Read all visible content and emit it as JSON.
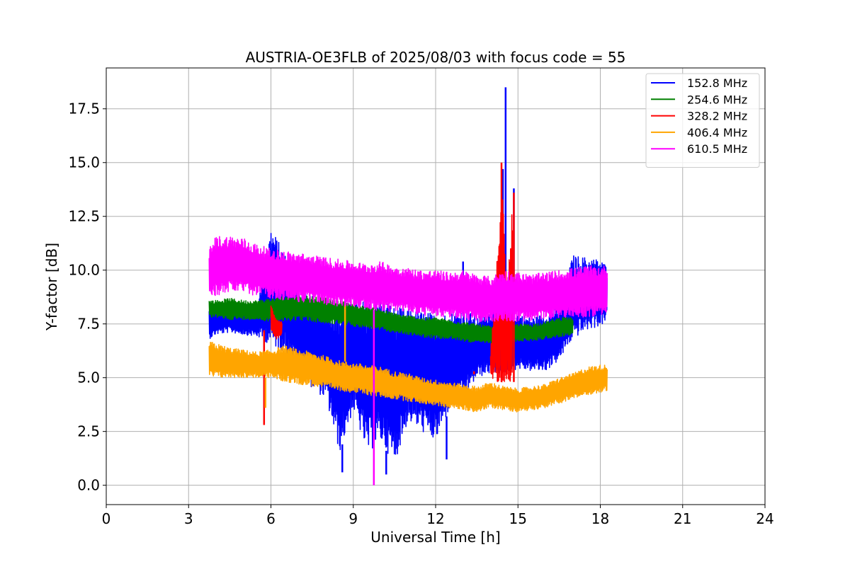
{
  "chart_data": {
    "type": "line",
    "title": "AUSTRIA-OE3FLB of 2025/08/03 with focus code = 55",
    "xlabel": "Universal Time [h]",
    "ylabel": "Y-factor [dB]",
    "xlim": [
      0,
      24
    ],
    "ylim": [
      -0.9,
      19.4
    ],
    "xticks": [
      0,
      3,
      6,
      9,
      12,
      15,
      18,
      21,
      24
    ],
    "xtick_labels": [
      "0",
      "3",
      "6",
      "9",
      "12",
      "15",
      "18",
      "21",
      "24"
    ],
    "yticks": [
      0.0,
      2.5,
      5.0,
      7.5,
      10.0,
      12.5,
      15.0,
      17.5
    ],
    "ytick_labels": [
      "0.0",
      "2.5",
      "5.0",
      "7.5",
      "10.0",
      "12.5",
      "15.0",
      "17.5"
    ],
    "grid": true,
    "legend_position": "top-right",
    "series": [
      {
        "name": "152.8 MHz",
        "color": "#0000ff",
        "x": [
          3.75,
          4.0,
          4.5,
          5.0,
          5.5,
          6.0,
          6.5,
          7.0,
          7.5,
          8.0,
          8.5,
          9.0,
          9.5,
          10.0,
          10.5,
          11.0,
          11.5,
          12.0,
          12.5,
          13.0,
          13.5,
          14.0,
          14.5,
          15.0,
          15.5,
          16.0,
          16.5,
          17.0,
          17.5,
          18.0,
          18.25
        ],
        "low": [
          6.8,
          7.0,
          7.1,
          7.0,
          6.9,
          6.5,
          6.2,
          5.5,
          4.5,
          4.0,
          1.5,
          3.5,
          1.5,
          2.0,
          1.0,
          3.0,
          2.5,
          2.0,
          3.5,
          4.0,
          5.0,
          5.2,
          5.2,
          5.4,
          5.3,
          5.3,
          5.8,
          6.8,
          7.2,
          7.4,
          7.6
        ],
        "high": [
          8.2,
          8.5,
          8.5,
          8.4,
          8.4,
          12.0,
          10.8,
          9.0,
          8.8,
          8.6,
          8.4,
          8.5,
          8.6,
          8.9,
          8.3,
          8.2,
          8.1,
          8.0,
          8.0,
          8.3,
          7.8,
          8.2,
          8.5,
          8.0,
          7.8,
          8.0,
          8.3,
          10.7,
          10.6,
          10.5,
          10.2
        ],
        "spikes": [
          {
            "x": 14.55,
            "y": 18.5
          },
          {
            "x": 14.85,
            "y": 13.8
          },
          {
            "x": 14.45,
            "y": 14.7
          },
          {
            "x": 8.6,
            "y": 0.6
          },
          {
            "x": 10.2,
            "y": 0.5
          },
          {
            "x": 12.4,
            "y": 1.2
          },
          {
            "x": 13.0,
            "y": 10.4
          }
        ]
      },
      {
        "name": "254.6 MHz",
        "color": "#008000",
        "x": [
          3.75,
          4.0,
          4.5,
          5.0,
          5.5,
          6.0,
          6.5,
          7.0,
          7.5,
          8.0,
          8.5,
          9.0,
          9.5,
          10.0,
          10.5,
          11.0,
          11.5,
          12.0,
          12.5,
          13.0,
          13.5,
          14.0,
          14.5,
          15.0,
          15.5,
          16.0,
          16.5,
          17.0
        ],
        "low": [
          7.8,
          7.8,
          7.7,
          7.7,
          7.7,
          7.6,
          7.6,
          7.7,
          7.6,
          7.5,
          7.5,
          7.4,
          7.3,
          7.2,
          7.1,
          7.0,
          6.9,
          6.8,
          6.8,
          6.7,
          6.6,
          6.6,
          6.6,
          6.7,
          6.7,
          6.8,
          6.9,
          7.0
        ],
        "high": [
          8.6,
          8.6,
          8.7,
          8.6,
          8.6,
          8.7,
          8.8,
          8.9,
          8.8,
          8.7,
          8.6,
          8.4,
          8.3,
          8.2,
          8.0,
          7.9,
          7.8,
          7.8,
          7.7,
          7.6,
          7.5,
          7.4,
          7.4,
          7.5,
          7.5,
          7.6,
          7.8,
          7.8
        ]
      },
      {
        "name": "328.2 MHz",
        "color": "#ff0000",
        "x": [
          6.0,
          6.2,
          6.4,
          14.0,
          14.2,
          14.4,
          14.6,
          14.8
        ],
        "low": [
          7.2,
          6.8,
          7.0,
          5.0,
          4.8,
          4.8,
          4.8,
          4.8
        ],
        "high": [
          8.4,
          7.8,
          7.6,
          6.2,
          9.5,
          15.0,
          9.0,
          13.6
        ],
        "spikes": [
          {
            "x": 5.75,
            "y": 2.8
          },
          {
            "x": 14.4,
            "y": 15.0
          },
          {
            "x": 14.85,
            "y": 13.6
          },
          {
            "x": 13.4,
            "y": 5.3
          }
        ]
      },
      {
        "name": "406.4 MHz",
        "color": "#ffa500",
        "x": [
          3.75,
          4.0,
          4.5,
          5.0,
          5.5,
          6.0,
          6.5,
          7.0,
          7.5,
          8.0,
          8.5,
          9.0,
          9.5,
          10.0,
          10.5,
          11.0,
          11.5,
          12.0,
          12.5,
          13.0,
          13.5,
          14.0,
          14.5,
          15.0,
          15.5,
          16.0,
          16.5,
          17.0,
          17.5,
          18.0,
          18.25
        ],
        "low": [
          5.0,
          5.0,
          5.0,
          5.0,
          5.0,
          5.0,
          4.8,
          4.7,
          4.6,
          4.5,
          4.4,
          4.3,
          4.2,
          4.1,
          4.0,
          3.9,
          3.8,
          3.7,
          3.6,
          3.5,
          3.4,
          3.6,
          3.5,
          3.4,
          3.5,
          3.6,
          3.8,
          4.0,
          4.2,
          4.3,
          4.4
        ],
        "high": [
          6.7,
          6.6,
          6.4,
          6.3,
          6.2,
          6.3,
          6.5,
          6.3,
          6.2,
          6.0,
          5.8,
          5.7,
          5.6,
          5.5,
          5.3,
          5.2,
          5.0,
          4.9,
          4.8,
          4.7,
          4.6,
          4.8,
          4.6,
          4.5,
          4.6,
          4.7,
          5.0,
          5.2,
          5.5,
          5.6,
          5.6
        ],
        "spikes": [
          {
            "x": 8.7,
            "y": 8.5
          },
          {
            "x": 5.8,
            "y": 3.6
          }
        ]
      },
      {
        "name": "610.5 MHz",
        "color": "#ff00ff",
        "x": [
          3.75,
          4.0,
          4.5,
          5.0,
          5.5,
          6.0,
          6.5,
          7.0,
          7.5,
          8.0,
          8.5,
          9.0,
          9.5,
          10.0,
          10.5,
          11.0,
          11.5,
          12.0,
          12.5,
          13.0,
          13.5,
          14.0,
          14.5,
          15.0,
          15.5,
          16.0,
          16.5,
          17.0,
          17.5,
          18.0,
          18.25
        ],
        "low": [
          8.6,
          8.8,
          9.0,
          8.9,
          8.8,
          8.7,
          8.6,
          8.5,
          8.5,
          8.4,
          8.3,
          8.3,
          8.2,
          8.1,
          8.1,
          8.0,
          7.9,
          7.8,
          7.8,
          7.7,
          7.6,
          7.6,
          7.6,
          7.6,
          7.6,
          7.7,
          7.8,
          7.8,
          7.8,
          7.9,
          8.0
        ],
        "high": [
          11.0,
          11.6,
          11.6,
          11.5,
          11.2,
          11.0,
          10.9,
          10.8,
          10.7,
          10.6,
          10.5,
          10.4,
          10.3,
          10.4,
          10.2,
          10.1,
          10.0,
          10.0,
          9.9,
          10.0,
          9.8,
          9.7,
          10.0,
          9.9,
          9.8,
          9.9,
          10.0,
          10.1,
          10.2,
          10.2,
          10.2
        ],
        "spikes": [
          {
            "x": 9.75,
            "y": 0.0
          }
        ]
      }
    ]
  }
}
